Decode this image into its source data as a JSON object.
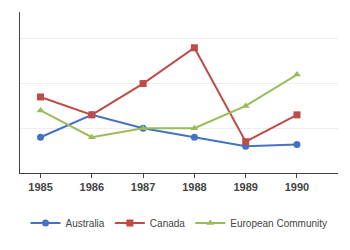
{
  "chart_data": {
    "type": "line",
    "x": [
      1985,
      1986,
      1987,
      1988,
      1989,
      1990
    ],
    "series": [
      {
        "name": "Australia",
        "color": "#4472C4",
        "marker": "circle",
        "values": [
          14,
          16.5,
          15,
          14,
          13,
          13.2
        ]
      },
      {
        "name": "Canada",
        "color": "#BE4B48",
        "marker": "square",
        "values": [
          18.5,
          16.5,
          20,
          24,
          13.5,
          16.5
        ]
      },
      {
        "name": "European Community",
        "color": "#9BBB59",
        "marker": "triangle-up",
        "values": [
          17,
          14,
          15,
          15,
          17.5,
          21
        ]
      }
    ],
    "xlim": [
      1984.6,
      1990.8
    ],
    "xticks": [
      1985,
      1986,
      1987,
      1988,
      1989,
      1990
    ],
    "ylim": [
      10,
      28
    ],
    "yticks": [
      10,
      15,
      20,
      25
    ],
    "grid": true,
    "tick_labels": "x",
    "legend": "bottom"
  }
}
